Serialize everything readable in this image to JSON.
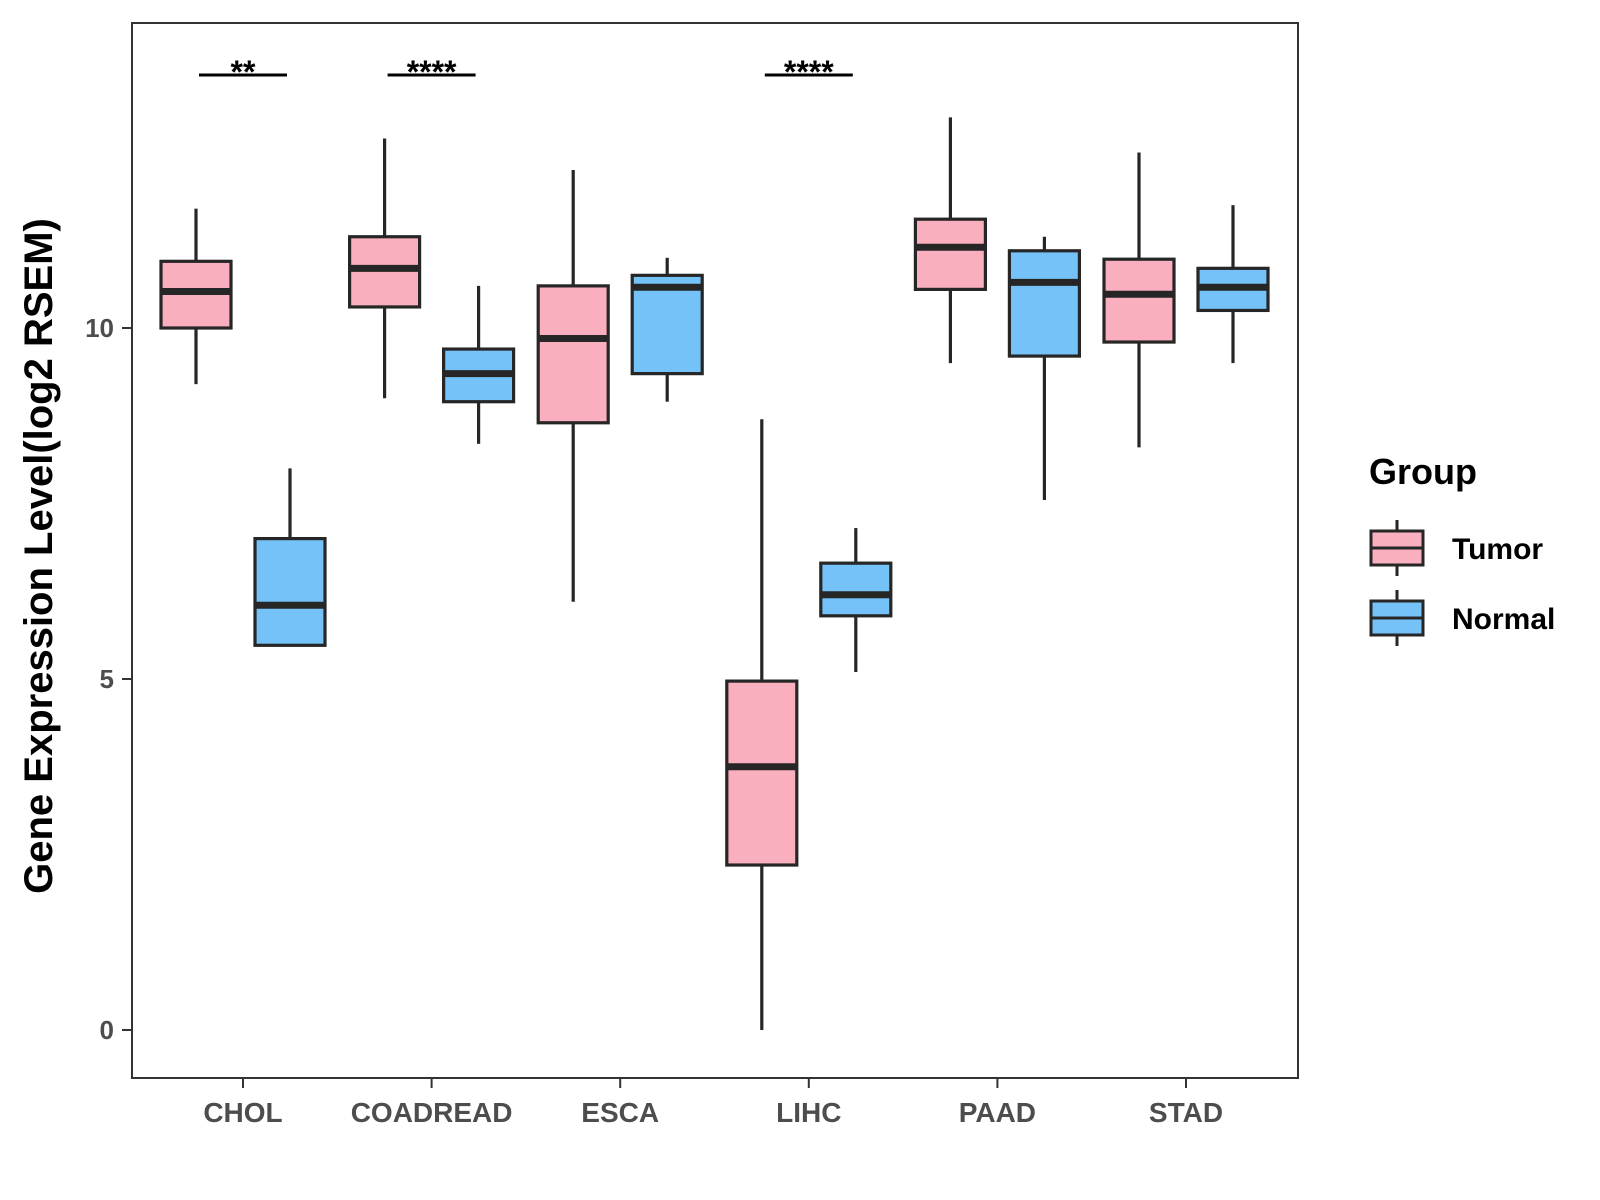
{
  "chart_data": {
    "type": "boxplot",
    "title": "",
    "xlabel": "",
    "ylabel": "Gene Expression Level(log2 RSEM)",
    "ylim": [
      -0.65,
      14.4
    ],
    "yticks": [
      0,
      5,
      10
    ],
    "grid": false,
    "legend_position": "right",
    "legend_title": "Group",
    "categories": [
      "CHOL",
      "COADREAD",
      "ESCA",
      "LIHC",
      "PAAD",
      "STAD"
    ],
    "series": [
      {
        "name": "Tumor",
        "color": "#FAAFBE",
        "boxes": [
          {
            "min": 9.2,
            "q1": 10.0,
            "median": 10.52,
            "q3": 10.95,
            "max": 11.7
          },
          {
            "min": 9.0,
            "q1": 10.3,
            "median": 10.85,
            "q3": 11.3,
            "max": 12.7
          },
          {
            "min": 6.1,
            "q1": 8.65,
            "median": 9.85,
            "q3": 10.6,
            "max": 12.25
          },
          {
            "min": 0.0,
            "q1": 2.35,
            "median": 3.75,
            "q3": 4.97,
            "max": 8.7
          },
          {
            "min": 9.5,
            "q1": 10.55,
            "median": 11.15,
            "q3": 11.55,
            "max": 13.0
          },
          {
            "min": 8.3,
            "q1": 9.8,
            "median": 10.48,
            "q3": 10.98,
            "max": 12.5
          }
        ]
      },
      {
        "name": "Normal",
        "color": "#75C2F8",
        "boxes": [
          {
            "min": 5.48,
            "q1": 5.48,
            "median": 6.05,
            "q3": 7.0,
            "max": 8.0
          },
          {
            "min": 8.35,
            "q1": 8.95,
            "median": 9.35,
            "q3": 9.7,
            "max": 10.6
          },
          {
            "min": 8.95,
            "q1": 9.35,
            "median": 10.58,
            "q3": 10.75,
            "max": 11.0
          },
          {
            "min": 5.1,
            "q1": 5.9,
            "median": 6.2,
            "q3": 6.65,
            "max": 7.15
          },
          {
            "min": 7.55,
            "q1": 9.6,
            "median": 10.65,
            "q3": 11.1,
            "max": 11.3
          },
          {
            "min": 9.5,
            "q1": 10.25,
            "median": 10.58,
            "q3": 10.85,
            "max": 11.75
          }
        ]
      }
    ],
    "annotations": [
      {
        "category": "CHOL",
        "label": "**"
      },
      {
        "category": "COADREAD",
        "label": "****"
      },
      {
        "category": "LIHC",
        "label": "****"
      }
    ]
  }
}
